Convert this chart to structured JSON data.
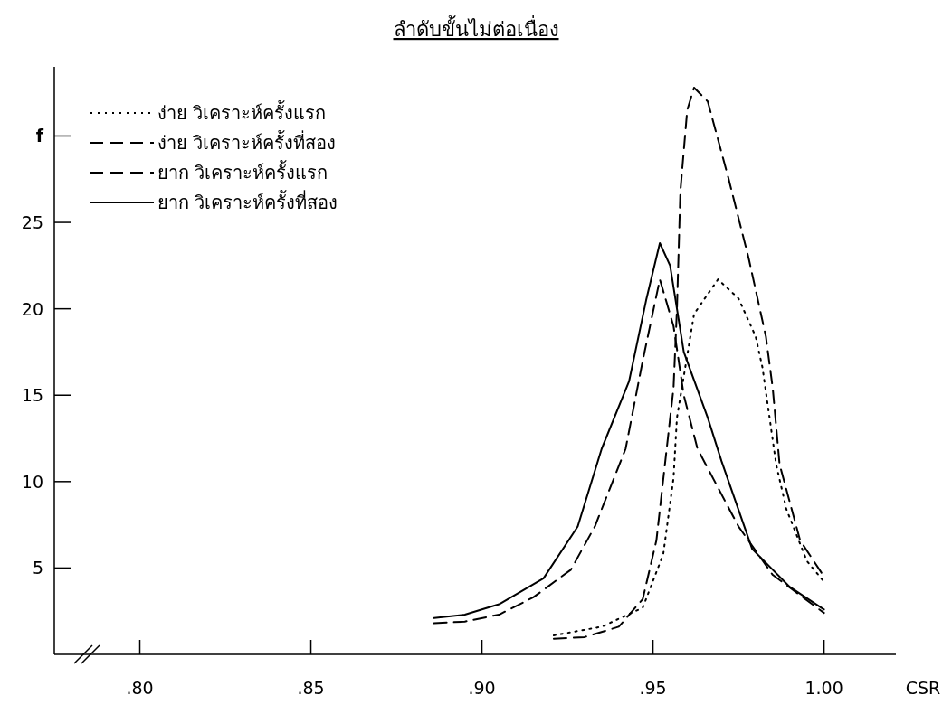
{
  "chart_data": {
    "type": "line",
    "title": "ลำดับขั้นไม่ต่อเนื่อง",
    "xlabel": "CSR",
    "xlim": [
      0.775,
      1.021
    ],
    "ylim": [
      0,
      34
    ],
    "xticks": [
      {
        "value": 0.8,
        "label": ".80"
      },
      {
        "value": 0.85,
        "label": ".85"
      },
      {
        "value": 0.9,
        "label": ".90"
      },
      {
        "value": 0.95,
        "label": ".95"
      },
      {
        "value": 1.0,
        "label": "1.00"
      }
    ],
    "yticks": [
      5,
      10,
      15,
      20,
      25,
      {
        "value": 30,
        "label": "f"
      }
    ],
    "legend": "top left",
    "series": [
      {
        "name": "ง่าย วิเคราะห์ครั้งแรก",
        "color": "#000000",
        "line_style": "dotted",
        "x": [
          0.921,
          0.935,
          0.947,
          0.953,
          0.956,
          0.957,
          0.962,
          0.969,
          0.975,
          0.98,
          0.982,
          0.986,
          0.989,
          0.995,
          1.0
        ],
        "values": [
          1.1,
          1.6,
          2.7,
          5.8,
          10.2,
          13.7,
          19.7,
          21.7,
          20.6,
          18.4,
          16.6,
          11,
          8.4,
          5.4,
          4.2
        ]
      },
      {
        "name": "ง่าย วิเคราะห์ครั้งที่สอง",
        "color": "#000000",
        "line_style": "dashed",
        "x": [
          0.921,
          0.93,
          0.94,
          0.947,
          0.951,
          0.954,
          0.956,
          0.957,
          0.958,
          0.96,
          0.962,
          0.966,
          0.972,
          0.978,
          0.983,
          0.985,
          0.987,
          0.993,
          1.0
        ],
        "values": [
          0.9,
          1.0,
          1.6,
          3.2,
          6.6,
          11.9,
          15.4,
          20,
          26.8,
          31.5,
          32.8,
          32,
          27.6,
          22.9,
          18.4,
          15.4,
          11,
          6.6,
          4.5
        ]
      },
      {
        "name": "ยาก วิเคราะห์ครั้งแรก",
        "color": "#000000",
        "line_style": "dashed",
        "x": [
          0.886,
          0.895,
          0.905,
          0.915,
          0.926,
          0.933,
          0.942,
          0.947,
          0.952,
          0.956,
          0.959,
          0.963,
          0.975,
          0.985,
          1.0
        ],
        "values": [
          1.8,
          1.9,
          2.3,
          3.3,
          4.9,
          7.4,
          11.9,
          17,
          21.7,
          19,
          15,
          11.9,
          7.4,
          4.6,
          2.4
        ]
      },
      {
        "name": "ยาก วิเคราะห์ครั้งที่สอง",
        "color": "#000000",
        "line_style": "solid",
        "x": [
          0.886,
          0.895,
          0.905,
          0.918,
          0.928,
          0.935,
          0.943,
          0.948,
          0.952,
          0.955,
          0.959,
          0.966,
          0.97,
          0.979,
          0.99,
          1.0
        ],
        "values": [
          2.1,
          2.3,
          2.9,
          4.4,
          7.4,
          11.9,
          15.8,
          20.5,
          23.8,
          22.5,
          17.5,
          13.7,
          11.2,
          6.1,
          3.9,
          2.6
        ]
      }
    ]
  }
}
